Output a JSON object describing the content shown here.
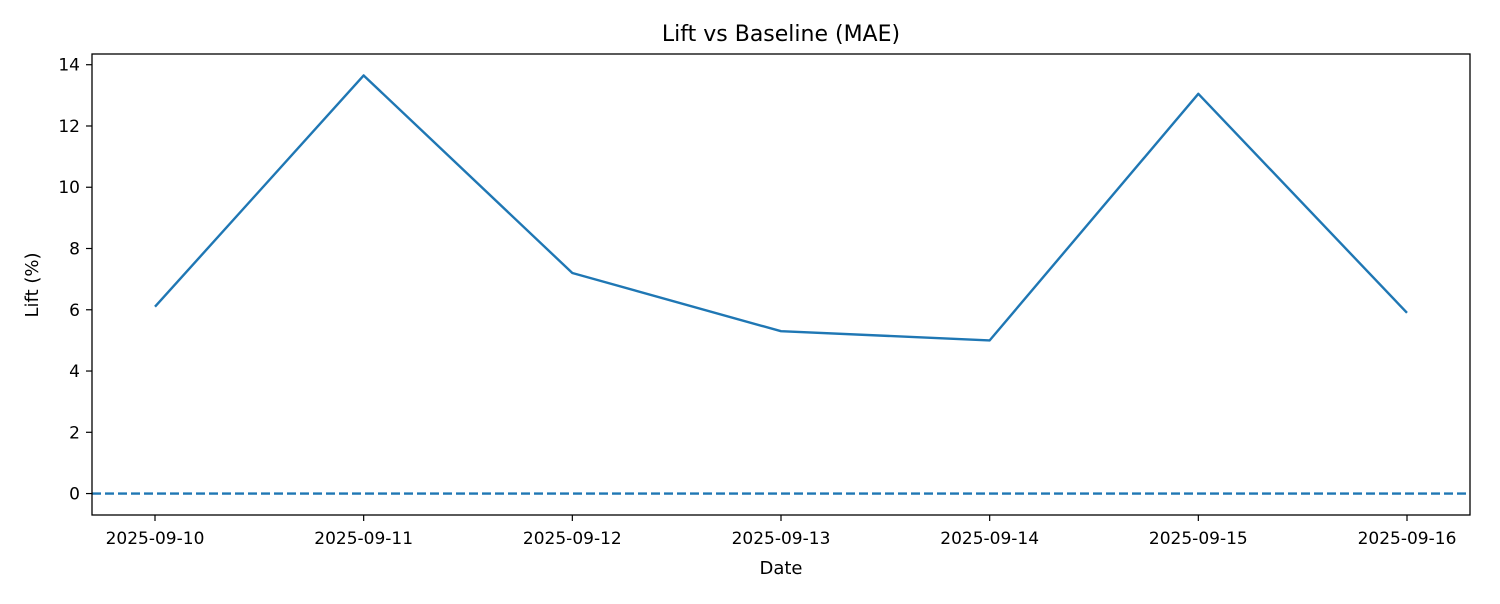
{
  "chart_data": {
    "type": "line",
    "title": "Lift vs Baseline (MAE)",
    "xlabel": "Date",
    "ylabel": "Lift (%)",
    "x": [
      "2025-09-10",
      "2025-09-11",
      "2025-09-12",
      "2025-09-13",
      "2025-09-14",
      "2025-09-15",
      "2025-09-16"
    ],
    "series": [
      {
        "values": [
          6.1,
          13.65,
          7.2,
          5.3,
          5.0,
          13.05,
          5.9
        ],
        "color": "#1f77b4",
        "style": "solid"
      }
    ],
    "reference_lines": [
      {
        "y": 0,
        "color": "#1f77b4",
        "style": "dashed"
      }
    ],
    "ylim": [
      -0.7,
      14.35
    ],
    "yticks": [
      0,
      2,
      4,
      6,
      8,
      10,
      12,
      14
    ],
    "grid": false,
    "legend": "none"
  }
}
